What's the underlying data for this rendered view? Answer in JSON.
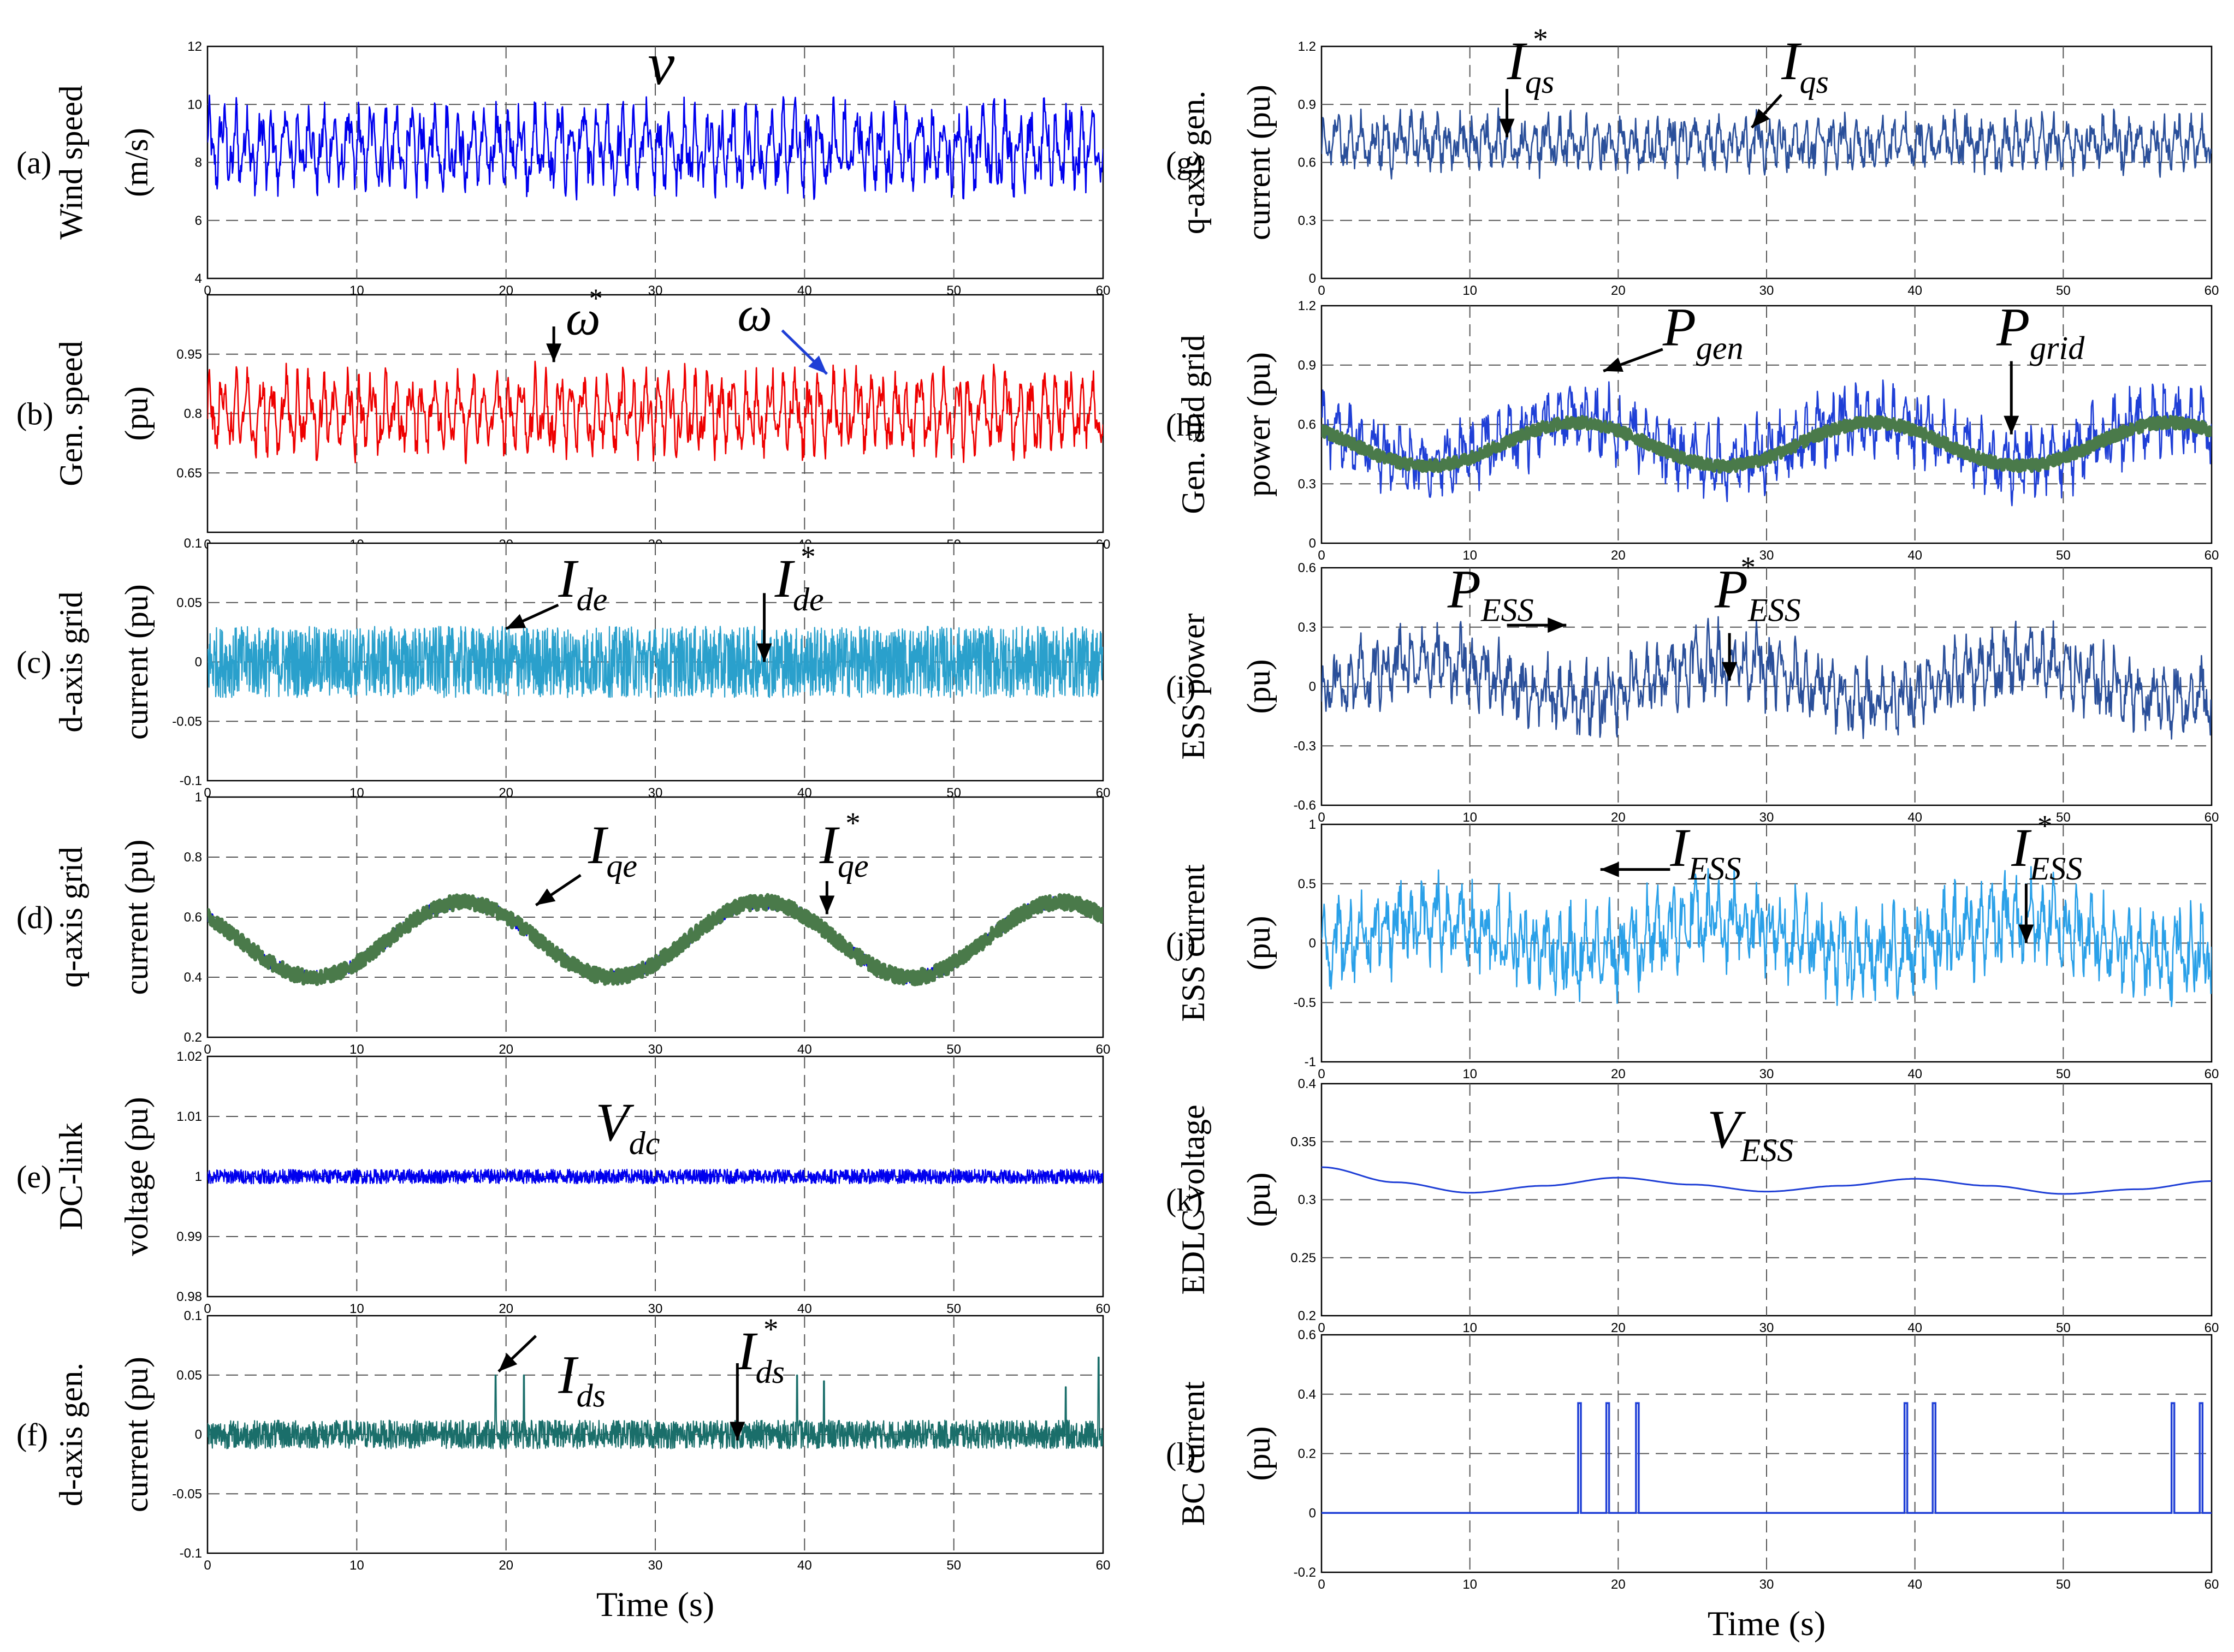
{
  "chart_data": [
    {
      "id": "a",
      "type": "line",
      "panel_label": "(a)",
      "ylabel": [
        "Wind speed",
        "(m/s)"
      ],
      "xlim": [
        0,
        60
      ],
      "ylim": [
        4,
        12
      ],
      "yticks": [
        "4",
        "6",
        "8",
        "10",
        "12"
      ],
      "xticks": [
        "0",
        "10",
        "20",
        "30",
        "40",
        "50",
        "60"
      ],
      "grid": true,
      "series": [
        {
          "name": "v",
          "color": "#0000ee",
          "kind": "noise",
          "mean": 8.5,
          "amp": 0.9,
          "freq": 1.2,
          "noise": 0.6
        }
      ],
      "annotations": [
        {
          "text": "v",
          "sup": "",
          "sub": "",
          "x": 29.5,
          "y": 10.7,
          "size": 110,
          "arrow": null
        }
      ]
    },
    {
      "id": "b",
      "type": "line",
      "panel_label": "(b)",
      "ylabel": [
        "Gen. speed",
        "(pu)"
      ],
      "xlim": [
        0,
        60
      ],
      "ylim": [
        0.5,
        1.1
      ],
      "yticks": [
        "0.65",
        "0.8",
        "0.95"
      ],
      "ytick_values": [
        0.65,
        0.8,
        0.95
      ],
      "xticks": [
        "0",
        "10",
        "20",
        "30",
        "40",
        "50",
        "60"
      ],
      "grid": true,
      "series": [
        {
          "name": "ω",
          "color": "#ee0000",
          "kind": "noise",
          "mean": 0.8,
          "amp": 0.065,
          "freq": 1.2,
          "noise": 0.035
        }
      ],
      "annotations": [
        {
          "text": "ω",
          "sup": "*",
          "sub": "",
          "x": 24,
          "y": 1.0,
          "size": 90,
          "arrow": {
            "from": [
              23.2,
              1.02
            ],
            "to": [
              23.2,
              0.93
            ],
            "color": "#000"
          }
        },
        {
          "text": "ω",
          "sup": "",
          "sub": "",
          "x": 35.5,
          "y": 1.01,
          "size": 90,
          "arrow": {
            "from": [
              38.5,
              1.01
            ],
            "to": [
              41.5,
              0.9
            ],
            "color": "#1f3fd6"
          }
        }
      ]
    },
    {
      "id": "c",
      "type": "line",
      "panel_label": "(c)",
      "ylabel": [
        "d-axis grid",
        "current (pu)"
      ],
      "xlim": [
        0,
        60
      ],
      "ylim": [
        -0.1,
        0.1
      ],
      "yticks": [
        "-0.1",
        "-0.05",
        "0",
        "0.05",
        "0.1"
      ],
      "xticks": [
        "0",
        "10",
        "20",
        "30",
        "40",
        "50",
        "60"
      ],
      "grid": true,
      "series": [
        {
          "name": "I_de",
          "color": "#2aa0cc",
          "kind": "band",
          "mean": 0,
          "amp": 0,
          "freq": 1,
          "noise": 0.03
        }
      ],
      "annotations": [
        {
          "text": "I",
          "sup": "",
          "sub": "de",
          "x": 23.5,
          "y": 0.055,
          "size": 100,
          "arrow": {
            "from": [
              23.5,
              0.048
            ],
            "to": [
              20,
              0.028
            ],
            "color": "#000"
          }
        },
        {
          "text": "I",
          "sup": "*",
          "sub": "de",
          "x": 38,
          "y": 0.055,
          "size": 100,
          "arrow": {
            "from": [
              37.3,
              0.058
            ],
            "to": [
              37.3,
              0.0
            ],
            "color": "#000"
          }
        }
      ]
    },
    {
      "id": "d",
      "type": "line",
      "panel_label": "(d)",
      "ylabel": [
        "q-axis grid",
        "current (pu)"
      ],
      "xlim": [
        0,
        60
      ],
      "ylim": [
        0.2,
        1
      ],
      "yticks": [
        "0.2",
        "0.4",
        "0.6",
        "0.8",
        "1"
      ],
      "xticks": [
        "0",
        "10",
        "20",
        "30",
        "40",
        "50",
        "60"
      ],
      "grid": true,
      "series": [
        {
          "name": "I_qe",
          "color": "#0000ee",
          "kind": "sine",
          "mean": 0.525,
          "amp": 0.125,
          "period": 20,
          "phase": 0.9,
          "noise": 0.022
        },
        {
          "name": "I*_qe",
          "color": "#4a7a4a",
          "kind": "band",
          "mean": 0.525,
          "amp": 0.125,
          "period": 20,
          "phase": 0.9,
          "noise": 0.025,
          "follow": true
        }
      ],
      "annotations": [
        {
          "text": "I",
          "sup": "",
          "sub": "qe",
          "x": 25.5,
          "y": 0.78,
          "size": 100,
          "arrow": {
            "from": [
              25,
              0.74
            ],
            "to": [
              22,
              0.64
            ],
            "color": "#000"
          }
        },
        {
          "text": "I",
          "sup": "*",
          "sub": "qe",
          "x": 41,
          "y": 0.78,
          "size": 100,
          "arrow": {
            "from": [
              41.5,
              0.72
            ],
            "to": [
              41.5,
              0.61
            ],
            "color": "#000"
          }
        }
      ]
    },
    {
      "id": "e",
      "type": "line",
      "panel_label": "(e)",
      "ylabel": [
        "DC-link",
        "voltage (pu)"
      ],
      "xlim": [
        0,
        60
      ],
      "ylim": [
        0.98,
        1.02
      ],
      "yticks": [
        "0.98",
        "0.99",
        "1",
        "1.01",
        "1.02"
      ],
      "xticks": [
        "0",
        "10",
        "20",
        "30",
        "40",
        "50",
        "60"
      ],
      "grid": true,
      "series": [
        {
          "name": "V_dc",
          "color": "#0000ee",
          "kind": "band",
          "mean": 1.0,
          "amp": 0,
          "freq": 1,
          "noise": 0.0012
        }
      ],
      "annotations": [
        {
          "text": "V",
          "sup": "",
          "sub": "dc",
          "x": 26,
          "y": 1.006,
          "size": 100,
          "arrow": null
        }
      ]
    },
    {
      "id": "f",
      "type": "line",
      "panel_label": "(f)",
      "ylabel": [
        "d-axis gen.",
        "current (pu)"
      ],
      "xlim": [
        0,
        60
      ],
      "ylim": [
        -0.1,
        0.1
      ],
      "yticks": [
        "-0.1",
        "-0.05",
        "0",
        "0.05",
        "0.1"
      ],
      "xticks": [
        "0",
        "10",
        "20",
        "30",
        "40",
        "50",
        "60"
      ],
      "xlabel": "Time (s)",
      "grid": true,
      "series": [
        {
          "name": "I_ds",
          "color": "#1a6e6a",
          "kind": "band",
          "mean": 0,
          "amp": 0,
          "freq": 1,
          "noise": 0.012,
          "spikes": [
            [
              19.3,
              0.05
            ],
            [
              21.2,
              0.05
            ],
            [
              39.5,
              0.05
            ],
            [
              41.3,
              0.045
            ],
            [
              57.5,
              0.04
            ],
            [
              59.7,
              0.065
            ]
          ]
        }
      ],
      "annotations": [
        {
          "text": "I",
          "sup": "",
          "sub": "ds",
          "x": 23.5,
          "y": 0.035,
          "size": 100,
          "arrow": {
            "from": [
              22,
              0.083
            ],
            "to": [
              19.5,
              0.053
            ],
            "color": "#000"
          }
        },
        {
          "text": "I",
          "sup": "*",
          "sub": "ds",
          "x": 35.5,
          "y": 0.055,
          "size": 100,
          "arrow": {
            "from": [
              35.5,
              0.06
            ],
            "to": [
              35.5,
              -0.005
            ],
            "color": "#000"
          }
        }
      ]
    },
    {
      "id": "g",
      "type": "line",
      "panel_label": "(g)",
      "ylabel": [
        "q-axis gen.",
        "current (pu)"
      ],
      "xlim": [
        0,
        60
      ],
      "ylim": [
        0,
        1.2
      ],
      "yticks": [
        "0",
        "0.3",
        "0.6",
        "0.9",
        "1.2"
      ],
      "xticks": [
        "0",
        "10",
        "20",
        "30",
        "40",
        "50",
        "60"
      ],
      "grid": true,
      "series": [
        {
          "name": "I_qs",
          "color": "#2a4f9a",
          "kind": "noise",
          "mean": 0.7,
          "amp": 0.08,
          "freq": 1.2,
          "noise": 0.07
        }
      ],
      "annotations": [
        {
          "text": "I",
          "sup": "*",
          "sub": "qs",
          "x": 12.5,
          "y": 1.03,
          "size": 100,
          "arrow": {
            "from": [
              12.5,
              0.98
            ],
            "to": [
              12.5,
              0.73
            ],
            "color": "#000"
          }
        },
        {
          "text": "I",
          "sup": "",
          "sub": "qs",
          "x": 31,
          "y": 1.03,
          "size": 100,
          "arrow": {
            "from": [
              31,
              0.95
            ],
            "to": [
              29,
              0.78
            ],
            "color": "#000"
          }
        }
      ]
    },
    {
      "id": "h",
      "type": "line",
      "panel_label": "(h)",
      "ylabel": [
        "Gen. and grid",
        "power (pu)"
      ],
      "xlim": [
        0,
        60
      ],
      "ylim": [
        0,
        1.2
      ],
      "yticks": [
        "0",
        "0.3",
        "0.6",
        "0.9",
        "1.2"
      ],
      "xticks": [
        "0",
        "10",
        "20",
        "30",
        "40",
        "50",
        "60"
      ],
      "grid": true,
      "series": [
        {
          "name": "P_gen",
          "color": "#1f3fd6",
          "kind": "noise",
          "mean": 0.52,
          "amp": 0.1,
          "freq": 1.2,
          "noise": 0.09,
          "trend": {
            "amp": 0.11,
            "period": 20,
            "phase": 0.9
          }
        },
        {
          "name": "P_grid",
          "color": "#4a7a4a",
          "kind": "band",
          "mean": 0.5,
          "amp": 0.11,
          "period": 20,
          "phase": 0.9,
          "noise": 0.03,
          "follow": true
        }
      ],
      "annotations": [
        {
          "text": "P",
          "sup": "",
          "sub": "gen",
          "x": 23,
          "y": 1.0,
          "size": 100,
          "arrow": {
            "from": [
              23,
              0.98
            ],
            "to": [
              19,
              0.87
            ],
            "color": "#000"
          }
        },
        {
          "text": "P",
          "sup": "",
          "sub": "grid",
          "x": 45.5,
          "y": 1.0,
          "size": 100,
          "arrow": {
            "from": [
              46.5,
              0.92
            ],
            "to": [
              46.5,
              0.55
            ],
            "color": "#000"
          }
        }
      ]
    },
    {
      "id": "i",
      "type": "line",
      "panel_label": "(i)",
      "ylabel": [
        "ESS power",
        "(pu)"
      ],
      "xlim": [
        0,
        60
      ],
      "ylim": [
        -0.6,
        0.6
      ],
      "yticks": [
        "-0.6",
        "-0.3",
        "0",
        "0.3",
        "0.6"
      ],
      "xticks": [
        "0",
        "10",
        "20",
        "30",
        "40",
        "50",
        "60"
      ],
      "grid": true,
      "series": [
        {
          "name": "P_ESS",
          "color": "#2a4f9a",
          "kind": "noise",
          "mean": 0.03,
          "amp": 0.1,
          "freq": 1.2,
          "noise": 0.09,
          "trend": {
            "amp": -0.1,
            "period": 20,
            "phase": 0.9
          }
        }
      ],
      "annotations": [
        {
          "text": "P",
          "sup": "",
          "sub": "ESS",
          "x": 8.5,
          "y": 0.4,
          "size": 100,
          "arrow": {
            "from": [
              12.5,
              0.31
            ],
            "to": [
              16.5,
              0.31
            ],
            "color": "#000"
          }
        },
        {
          "text": "P",
          "sup": "*",
          "sub": "ESS",
          "x": 26.5,
          "y": 0.4,
          "size": 100,
          "arrow": {
            "from": [
              27.5,
              0.27
            ],
            "to": [
              27.5,
              0.03
            ],
            "color": "#000"
          }
        }
      ]
    },
    {
      "id": "j",
      "type": "line",
      "panel_label": "(j)",
      "ylabel": [
        "ESS current",
        "(pu)"
      ],
      "xlim": [
        0,
        60
      ],
      "ylim": [
        -1,
        1
      ],
      "yticks": [
        "-1",
        "-0.5",
        "0",
        "0.5",
        "1"
      ],
      "xticks": [
        "0",
        "10",
        "20",
        "30",
        "40",
        "50",
        "60"
      ],
      "grid": true,
      "series": [
        {
          "name": "I_ESS",
          "color": "#2aa0e8",
          "kind": "noise",
          "mean": 0.05,
          "amp": 0.2,
          "freq": 1.2,
          "noise": 0.2,
          "trend": {
            "amp": -0.15,
            "period": 20,
            "phase": 0.9
          }
        }
      ],
      "annotations": [
        {
          "text": "I",
          "sup": "",
          "sub": "ESS",
          "x": 23.5,
          "y": 0.65,
          "size": 100,
          "arrow": {
            "from": [
              23.5,
              0.62
            ],
            "to": [
              18.8,
              0.62
            ],
            "color": "#000"
          }
        },
        {
          "text": "I",
          "sup": "*",
          "sub": "ESS",
          "x": 46.5,
          "y": 0.65,
          "size": 100,
          "arrow": {
            "from": [
              47.5,
              0.5
            ],
            "to": [
              47.5,
              0.0
            ],
            "color": "#000"
          }
        }
      ]
    },
    {
      "id": "k",
      "type": "line",
      "panel_label": "(k)",
      "ylabel": [
        "EDLC voltage",
        "(pu)"
      ],
      "xlim": [
        0,
        60
      ],
      "ylim": [
        0.2,
        0.4
      ],
      "yticks": [
        "0.2",
        "0.25",
        "0.3",
        "0.35",
        "0.4"
      ],
      "xticks": [
        "0",
        "10",
        "20",
        "30",
        "40",
        "50",
        "60"
      ],
      "grid": true,
      "series": [
        {
          "name": "V_ESS",
          "color": "#1f3fd6",
          "kind": "points",
          "x": [
            0,
            5,
            10,
            15,
            20,
            25,
            30,
            35,
            40,
            45,
            50,
            55,
            60
          ],
          "y": [
            0.328,
            0.315,
            0.306,
            0.312,
            0.319,
            0.313,
            0.307,
            0.312,
            0.318,
            0.312,
            0.305,
            0.309,
            0.316
          ]
        }
      ],
      "annotations": [
        {
          "text": "V",
          "sup": "",
          "sub": "ESS",
          "x": 26,
          "y": 0.345,
          "size": 100,
          "arrow": null
        }
      ]
    },
    {
      "id": "l",
      "type": "line",
      "panel_label": "(l)",
      "ylabel": [
        "BC current",
        "(pu)"
      ],
      "xlim": [
        0,
        60
      ],
      "ylim": [
        -0.2,
        0.6
      ],
      "yticks": [
        "-0.2",
        "0",
        "0.2",
        "0.4",
        "0.6"
      ],
      "xticks": [
        "0",
        "10",
        "20",
        "30",
        "40",
        "50",
        "60"
      ],
      "xlabel": "Time (s)",
      "grid": true,
      "series": [
        {
          "name": "I_BC",
          "color": "#1f3fd6",
          "kind": "pulses",
          "base": 0,
          "height": 0.37,
          "pulses": [
            17.3,
            19.2,
            21.2,
            39.3,
            41.2,
            57.3,
            59.2
          ]
        }
      ],
      "annotations": []
    }
  ]
}
